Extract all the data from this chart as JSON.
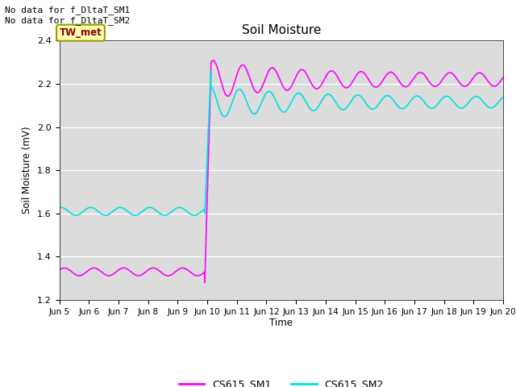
{
  "title": "Soil Moisture",
  "ylabel": "Soil Moisture (mV)",
  "xlabel": "Time",
  "ylim": [
    1.2,
    2.4
  ],
  "xlim": [
    0,
    360
  ],
  "bg_color": "#dcdcdc",
  "line1_color": "#ff00ff",
  "line2_color": "#00e0e0",
  "line1_label": "CS615_SM1",
  "line2_label": "CS615_SM2",
  "annotation_text": "No data for f_DltaT_SM1\nNo data for f_DltaT_SM2",
  "box_label": "TW_met",
  "xtick_labels": [
    "Jun 5",
    "Jun 6",
    "Jun 7",
    "Jun 8",
    "Jun 9",
    "Jun 10",
    "Jun 11",
    "Jun 12",
    "Jun 13",
    "Jun 14",
    "Jun 15",
    "Jun 16",
    "Jun 17",
    "Jun 18",
    "Jun 19",
    "Jun 20"
  ],
  "xtick_positions": [
    0,
    24,
    48,
    72,
    96,
    120,
    144,
    168,
    192,
    216,
    240,
    264,
    288,
    312,
    336,
    360
  ]
}
